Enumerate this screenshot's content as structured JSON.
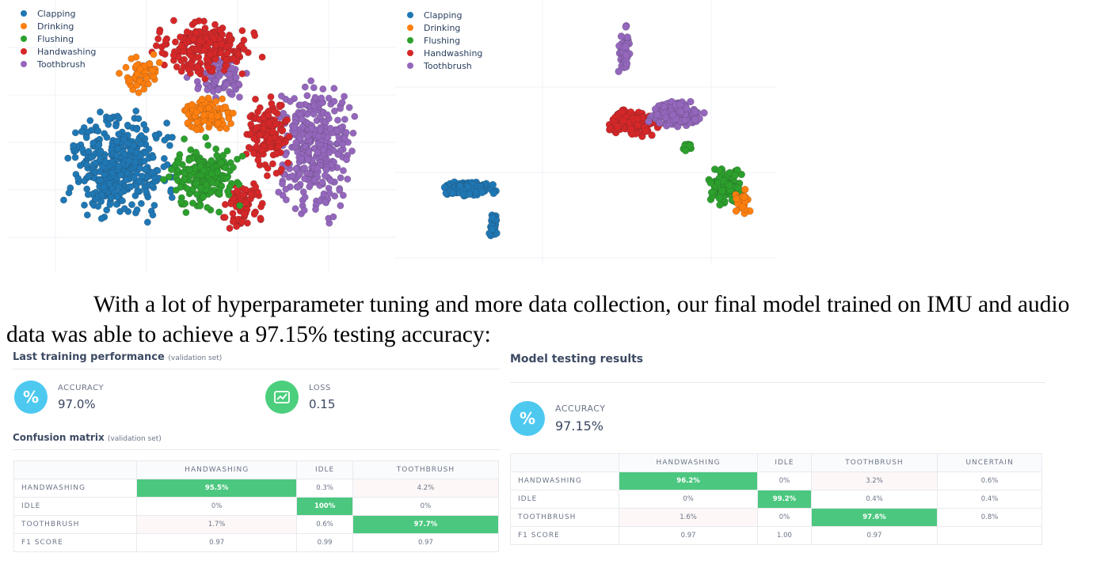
{
  "legend": {
    "items": [
      {
        "label": "Clapping",
        "color": "#1f77b4"
      },
      {
        "label": "Drinking",
        "color": "#ff7f0e"
      },
      {
        "label": "Flushing",
        "color": "#2ca02c"
      },
      {
        "label": "Handwashing",
        "color": "#d62728"
      },
      {
        "label": "Toothbrush",
        "color": "#9467bd"
      }
    ]
  },
  "paragraph": "With a lot of hyperparameter tuning and more data collection, our final model trained on IMU and audio data was able to achieve a 97.15% testing accuracy:",
  "training": {
    "title": "Last training performance",
    "title_note": "(validation set)",
    "accuracy_label": "ACCURACY",
    "accuracy_value": "97.0%",
    "accuracy_icon": "%",
    "loss_label": "LOSS",
    "loss_value": "0.15",
    "cm_title": "Confusion matrix",
    "cm_note": "(validation set)",
    "cm_columns": [
      "HANDWASHING",
      "IDLE",
      "TOOTHBRUSH"
    ],
    "cm_rows": [
      {
        "label": "HANDWASHING",
        "cells": [
          "95.5%",
          "0.3%",
          "4.2%"
        ]
      },
      {
        "label": "IDLE",
        "cells": [
          "0%",
          "100%",
          "0%"
        ]
      },
      {
        "label": "TOOTHBRUSH",
        "cells": [
          "1.7%",
          "0.6%",
          "97.7%"
        ]
      },
      {
        "label": "F1 SCORE",
        "cells": [
          "0.97",
          "0.99",
          "0.97"
        ]
      }
    ]
  },
  "testing": {
    "title": "Model testing results",
    "accuracy_label": "ACCURACY",
    "accuracy_value": "97.15%",
    "accuracy_icon": "%",
    "cm_columns": [
      "HANDWASHING",
      "IDLE",
      "TOOTHBRUSH",
      "UNCERTAIN"
    ],
    "cm_rows": [
      {
        "label": "HANDWASHING",
        "cells": [
          "96.2%",
          "0%",
          "3.2%",
          "0.6%"
        ]
      },
      {
        "label": "IDLE",
        "cells": [
          "0%",
          "99.2%",
          "0.4%",
          "0.4%"
        ]
      },
      {
        "label": "TOOTHBRUSH",
        "cells": [
          "1.6%",
          "0%",
          "97.6%",
          "0.8%"
        ]
      },
      {
        "label": "F1 SCORE",
        "cells": [
          "0.97",
          "1.00",
          "0.97",
          ""
        ]
      }
    ]
  }
}
